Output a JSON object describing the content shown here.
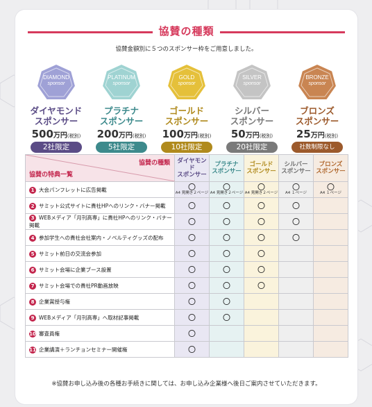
{
  "title": "協賛の種類",
  "subtitle": "協賛金額別に５つのスポンサー枠をご用意しました。",
  "sponsors": [
    {
      "medal": "DIAMOND",
      "medal_sub": "sponsor",
      "name1": "ダイヤモンド",
      "name2": "スポンサー",
      "amount": "500",
      "unit": "万円",
      "tax": "(税別)",
      "limit": "2社限定",
      "color": "#5b4c86",
      "medal_color": "#9fa1d6"
    },
    {
      "medal": "PLATINUM",
      "medal_sub": "sponsor",
      "name1": "プラチナ",
      "name2": "スポンサー",
      "amount": "200",
      "unit": "万円",
      "tax": "(税別)",
      "limit": "5社限定",
      "color": "#3d8a8c",
      "medal_color": "#9fd3d2"
    },
    {
      "medal": "GOLD",
      "medal_sub": "sponsor",
      "name1": "ゴールド",
      "name2": "スポンサー",
      "amount": "100",
      "unit": "万円",
      "tax": "(税別)",
      "limit": "10社限定",
      "color": "#b08a1d",
      "medal_color": "#e5c03a"
    },
    {
      "medal": "SILVER",
      "medal_sub": "sponsor",
      "name1": "シルバー",
      "name2": "スポンサー",
      "amount": "50",
      "unit": "万円",
      "tax": "(税別)",
      "limit": "20社限定",
      "color": "#7a7a7a",
      "medal_color": "#c4c4c4"
    },
    {
      "medal": "BRONZE",
      "medal_sub": "sponsor",
      "name1": "ブロンズ",
      "name2": "スポンサー",
      "amount": "25",
      "unit": "万円",
      "tax": "(税別)",
      "limit": "社数制限なし",
      "color": "#9c5a2c",
      "medal_color": "#c98552"
    }
  ],
  "table": {
    "header_type": "協賛の種類",
    "header_benefit": "協賛の特典一覧",
    "columns": [
      {
        "l1": "ダイヤモンド",
        "l2": "スポンサー",
        "color": "#5b4c86",
        "bg": "#e9e7f3"
      },
      {
        "l1": "プラチナ",
        "l2": "スポンサー",
        "color": "#3d8a8c",
        "bg": "#e6f2f2"
      },
      {
        "l1": "ゴールド",
        "l2": "スポンサー",
        "color": "#b08a1d",
        "bg": "#faf3dc"
      },
      {
        "l1": "シルバー",
        "l2": "スポンサー",
        "color": "#6f6f6f",
        "bg": "#efefef"
      },
      {
        "l1": "ブロンズ",
        "l2": "スポンサー",
        "color": "#b0682e",
        "bg": "#f6ebe1"
      }
    ],
    "mark": "〇",
    "rows": [
      {
        "n": "1",
        "label": "大会パンフレットに広告掲載",
        "cells": [
          "〇",
          "〇",
          "〇",
          "〇",
          "〇"
        ],
        "notes": [
          "A4 見開き２ページ",
          "A4 見開き２ページ",
          "A4 見開き２ページ",
          "A4 １ページ",
          "A4 １ページ"
        ]
      },
      {
        "n": "2",
        "label": "サミット公式サイトに貴社HPへのリンク・バナー掲載",
        "cells": [
          "〇",
          "〇",
          "〇",
          "〇",
          ""
        ]
      },
      {
        "n": "3",
        "label": "WEBメディア「月刊高専」に貴社HPへのリンク・バナー掲載",
        "cells": [
          "〇",
          "〇",
          "〇",
          "〇",
          ""
        ]
      },
      {
        "n": "4",
        "label": "参加学生への貴社会社案内・ノベルティグッズの配布",
        "cells": [
          "〇",
          "〇",
          "〇",
          "〇",
          ""
        ]
      },
      {
        "n": "5",
        "label": "サミット前日の交流会参加",
        "cells": [
          "〇",
          "〇",
          "〇",
          "",
          ""
        ]
      },
      {
        "n": "6",
        "label": "サミット会場に企業ブース設置",
        "cells": [
          "〇",
          "〇",
          "〇",
          "",
          ""
        ]
      },
      {
        "n": "7",
        "label": "サミット会場での貴社PR動画放映",
        "cells": [
          "〇",
          "〇",
          "〇",
          "",
          ""
        ]
      },
      {
        "n": "8",
        "label": "企業賞授与権",
        "cells": [
          "〇",
          "〇",
          "",
          "",
          ""
        ]
      },
      {
        "n": "9",
        "label": "WEBメディア「月刊高専」へ取材記事掲載",
        "cells": [
          "〇",
          "〇",
          "",
          "",
          ""
        ]
      },
      {
        "n": "10",
        "label": "審査員権",
        "cells": [
          "〇",
          "",
          "",
          "",
          ""
        ]
      },
      {
        "n": "11",
        "label": "企業講演＋ランチョンセミナー開催権",
        "cells": [
          "〇",
          "",
          "",
          "",
          ""
        ]
      }
    ]
  },
  "footnote": "※協賛お申し込み後の各種お手続きに関しては、お申し込み企業様へ後日ご案内させていただきます。"
}
